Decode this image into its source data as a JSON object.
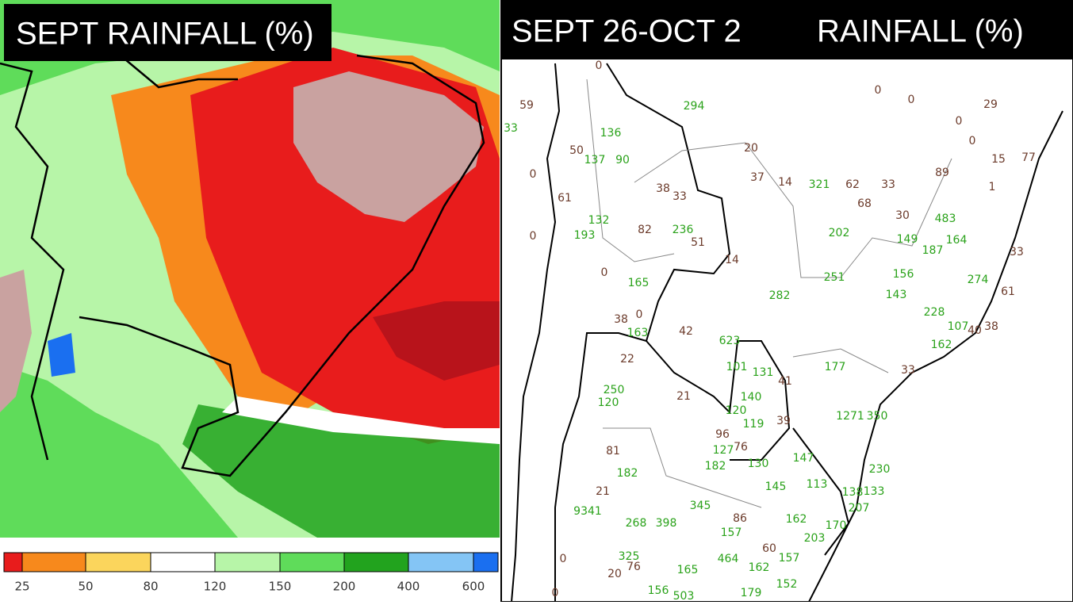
{
  "left_panel": {
    "title": "SEPT RAINFALL (%)",
    "colorbar": {
      "colors": [
        "#e81c1c",
        "#f7891c",
        "#fbd55c",
        "#ffffff",
        "#b7f5a8",
        "#5fdc5a",
        "#22a31e",
        "#84c5f5",
        "#1a6ff0"
      ],
      "labels": [
        25,
        50,
        80,
        120,
        150,
        200,
        400,
        600
      ]
    }
  },
  "right_panel": {
    "title_left": "SEPT 26-OCT 2",
    "title_right": "RAINFALL (%)",
    "below_color": "#6b3a2a",
    "above_color": "#2aa21a",
    "below_labels": [
      59,
      0,
      50,
      0,
      61,
      0,
      38,
      33,
      82,
      51,
      0,
      38,
      0,
      20,
      37,
      14,
      62,
      33,
      68,
      0,
      0,
      29,
      0,
      0,
      15,
      77,
      1,
      89,
      30,
      14,
      42,
      22,
      21,
      41,
      39,
      96,
      76,
      81,
      21,
      33,
      61,
      38,
      40,
      33,
      0,
      20,
      76,
      86,
      60,
      0
    ],
    "above_labels": [
      33,
      136,
      137,
      90,
      294,
      321,
      132,
      193,
      236,
      165,
      282,
      202,
      149,
      187,
      483,
      164,
      251,
      156,
      143,
      274,
      228,
      107,
      162,
      163,
      623,
      101,
      131,
      177,
      140,
      120,
      119,
      1271,
      350,
      250,
      120,
      182,
      127,
      182,
      130,
      147,
      145,
      113,
      138,
      133,
      230,
      207,
      162,
      170,
      203,
      9341,
      268,
      398,
      345,
      157,
      464,
      162,
      157,
      325,
      165,
      152,
      156,
      503,
      179
    ]
  }
}
